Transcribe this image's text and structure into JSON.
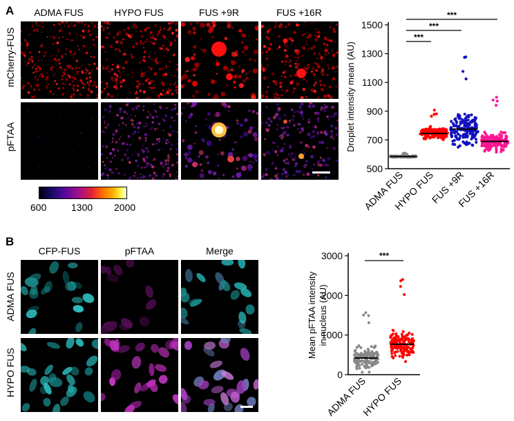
{
  "panel_a": {
    "letter": "A",
    "columns": [
      "ADMA FUS",
      "HYPO FUS",
      "FUS +9R",
      "FUS +16R"
    ],
    "rows": [
      "mCherry-FUS",
      "pFTAA"
    ],
    "colorbar": {
      "ticks": [
        "600",
        "1300",
        "2000"
      ]
    }
  },
  "panel_b": {
    "letter": "B",
    "columns": [
      "CFP-FUS",
      "pFTAA",
      "Merge"
    ],
    "rows": [
      "ADMA FUS",
      "HYPO FUS"
    ]
  },
  "chart_data": [
    {
      "type": "scatter",
      "ylabel": "Droplet intensity mean (AU)",
      "ylim": [
        500,
        1500
      ],
      "yticks": [
        500,
        700,
        900,
        1100,
        1300,
        1500
      ],
      "categories": [
        "ADMA FUS",
        "HYPO FUS",
        "FUS +9R",
        "FUS +16R"
      ],
      "series": [
        {
          "category": "ADMA FUS",
          "color": "#888888",
          "mean": 585,
          "min": 560,
          "max": 610
        },
        {
          "category": "HYPO FUS",
          "color": "#ff0000",
          "mean": 745,
          "min": 650,
          "max": 930
        },
        {
          "category": "FUS +9R",
          "color": "#1010c0",
          "mean": 775,
          "min": 640,
          "max": 1320
        },
        {
          "category": "FUS +16R",
          "color": "#ff1493",
          "mean": 690,
          "min": 610,
          "max": 1000
        }
      ],
      "significance": [
        "***",
        "***",
        "***"
      ],
      "grid": false
    },
    {
      "type": "scatter",
      "ylabel": "Mean pFTAA intensity in nucleus (AU)",
      "ylim": [
        0,
        3000
      ],
      "yticks": [
        0,
        1000,
        2000,
        3000
      ],
      "categories": [
        "ADMA FUS",
        "HYPO FUS"
      ],
      "series": [
        {
          "category": "ADMA FUS",
          "color": "#888888",
          "mean": 420,
          "min": 10,
          "max": 1750
        },
        {
          "category": "HYPO FUS",
          "color": "#ff0000",
          "mean": 770,
          "min": 30,
          "max": 2450
        }
      ],
      "significance": [
        "***"
      ],
      "grid": false
    }
  ]
}
